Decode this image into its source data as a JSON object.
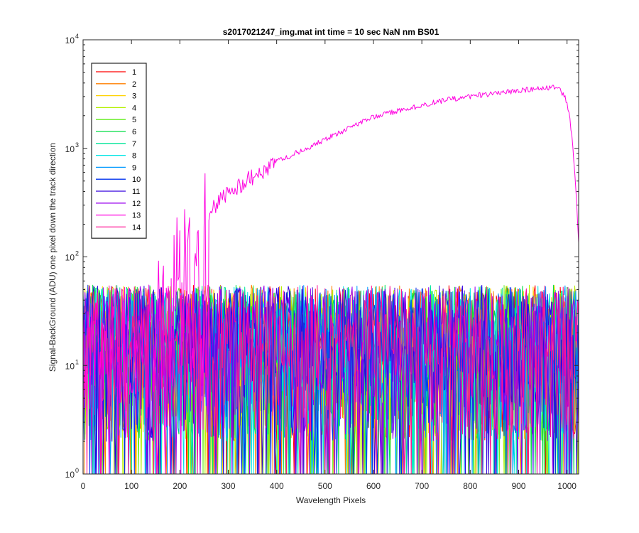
{
  "chart_data": {
    "type": "line",
    "title": "s2017021247_img.mat int time = 10 sec  NaN nm BS01",
    "xlabel": "Wavelength Pixels",
    "ylabel": "Signal-BackGround (ADU) one pixel down the track direction",
    "xlim": [
      0,
      1024
    ],
    "ylim": [
      1,
      10000
    ],
    "yscale": "log",
    "grid": false,
    "legend_position": "top-left",
    "x_ticks": [
      0,
      100,
      200,
      300,
      400,
      500,
      600,
      700,
      800,
      900,
      1000
    ],
    "x_tick_labels": [
      "0",
      "100",
      "200",
      "300",
      "400",
      "500",
      "600",
      "700",
      "800",
      "900",
      "1000"
    ],
    "y_ticks": [
      1,
      10,
      100,
      1000,
      10000
    ],
    "y_tick_labels": [
      "10",
      "10",
      "10",
      "10",
      "10"
    ],
    "y_tick_exponents": [
      "0",
      "1",
      "2",
      "3",
      "4"
    ],
    "noise_floor": {
      "description": "series 1-12 and 14 fluctuate between ~1 and ~50 ADU across all pixels",
      "range": [
        1,
        55
      ]
    },
    "series": [
      {
        "name": "1",
        "color": "#ff0000"
      },
      {
        "name": "2",
        "color": "#ff7f00"
      },
      {
        "name": "3",
        "color": "#ffd200"
      },
      {
        "name": "4",
        "color": "#b4f000"
      },
      {
        "name": "5",
        "color": "#66ee22"
      },
      {
        "name": "6",
        "color": "#00dd44"
      },
      {
        "name": "7",
        "color": "#00e699"
      },
      {
        "name": "8",
        "color": "#00e5e5"
      },
      {
        "name": "9",
        "color": "#0099ff"
      },
      {
        "name": "10",
        "color": "#0033ee"
      },
      {
        "name": "11",
        "color": "#3300dd"
      },
      {
        "name": "12",
        "color": "#9900ee"
      },
      {
        "name": "13",
        "color": "#ff00e0",
        "x": [
          95,
          110,
          130,
          150,
          170,
          190,
          210,
          230,
          250,
          275,
          300,
          330,
          360,
          400,
          450,
          500,
          550,
          600,
          650,
          700,
          750,
          800,
          850,
          900,
          940,
          965,
          975,
          985,
          995,
          1000,
          1005,
          1010,
          1015,
          1020,
          1024
        ],
        "y": [
          10,
          14,
          22,
          36,
          55,
          80,
          110,
          160,
          220,
          300,
          380,
          480,
          580,
          750,
          950,
          1200,
          1550,
          1950,
          2200,
          2500,
          2800,
          3000,
          3200,
          3400,
          3550,
          3650,
          3600,
          3450,
          3000,
          2600,
          2000,
          1300,
          700,
          300,
          130
        ]
      },
      {
        "name": "14",
        "color": "#ff1493"
      }
    ]
  }
}
